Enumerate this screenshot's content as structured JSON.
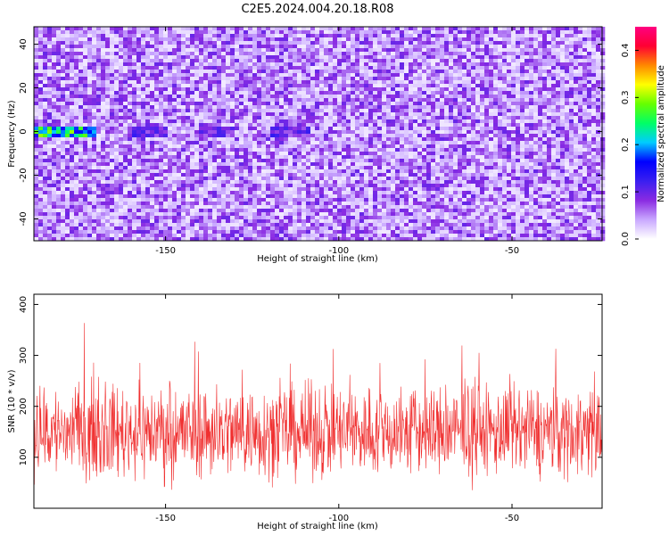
{
  "figure": {
    "title": "C2E5.2024.004.20.18.R08"
  },
  "chart_data": [
    {
      "type": "heatmap",
      "xlabel": "Height of straight line (km)",
      "ylabel": "Frequency (Hz)",
      "xlim": [
        -188,
        -24
      ],
      "ylim": [
        -50,
        48
      ],
      "xticks": [
        -150,
        -100,
        -50
      ],
      "yticks": [
        -40,
        -20,
        0,
        20,
        40
      ],
      "colorbar": {
        "label": "Normalized spectral amplitude",
        "range": [
          0.0,
          0.45
        ],
        "ticks": [
          0.0,
          0.1,
          0.2,
          0.3,
          0.4
        ],
        "tick_labels": [
          "0.0",
          "0.1",
          "0.2",
          "0.3",
          "0.4"
        ],
        "colormap": [
          "#ffffff",
          "#c9a8ff",
          "#8a2be2",
          "#3a1ff0",
          "#0000ff",
          "#00ccff",
          "#00ff66",
          "#66ff00",
          "#ffff00",
          "#ff8800",
          "#ff0033",
          "#ff0080"
        ]
      },
      "background_level": 0.05,
      "features": [
        {
          "x_range": [
            -188,
            -170
          ],
          "y": 0,
          "level": 0.28
        },
        {
          "x_range": [
            -160,
            -150
          ],
          "y": 0,
          "level": 0.12
        },
        {
          "x_range": [
            -140,
            -130
          ],
          "y": 0,
          "level": 0.11
        },
        {
          "x_range": [
            -120,
            -108
          ],
          "y": 0,
          "level": 0.12
        }
      ],
      "grid": false
    },
    {
      "type": "line",
      "xlabel": "Height of straight line (km)",
      "ylabel": "SNR (10 * v/v)",
      "xlim": [
        -188,
        -24
      ],
      "ylim": [
        0,
        420
      ],
      "xticks": [
        -150,
        -100,
        -50
      ],
      "yticks": [
        100,
        200,
        300,
        400
      ],
      "color": "#f03030",
      "series_stats": {
        "mean": 150,
        "spread": 55,
        "max": 400,
        "min": 10
      },
      "grid": false
    }
  ]
}
